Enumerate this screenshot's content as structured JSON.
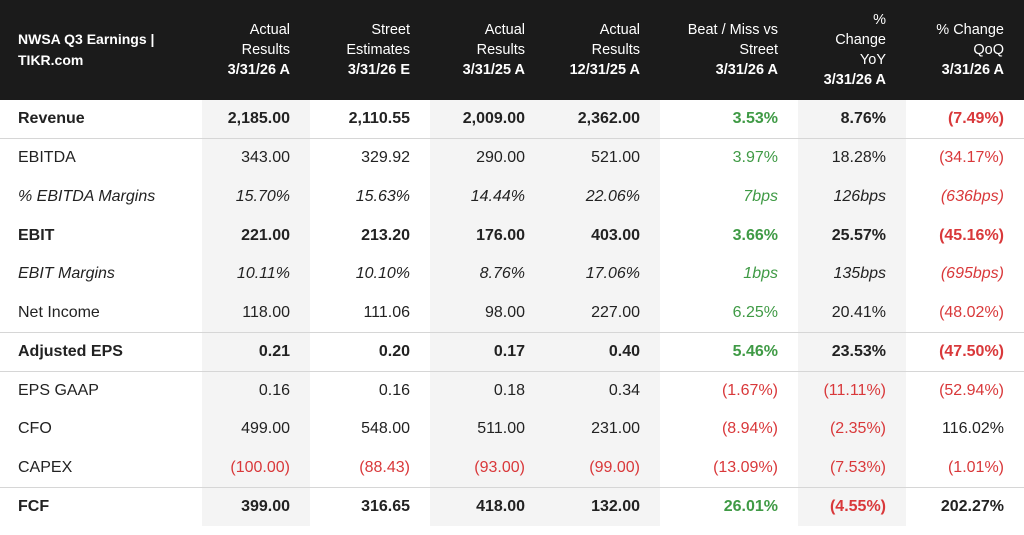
{
  "header": {
    "title": "NWSA Q3 Earnings | TIKR.com",
    "columns": [
      {
        "lines": [
          "Actual",
          "Results"
        ],
        "date": "3/31/26 A"
      },
      {
        "lines": [
          "Street",
          "Estimates"
        ],
        "date": "3/31/26 E"
      },
      {
        "lines": [
          "Actual",
          "Results"
        ],
        "date": "3/31/25 A"
      },
      {
        "lines": [
          "Actual",
          "Results"
        ],
        "date": "12/31/25 A"
      },
      {
        "lines": [
          "Beat / Miss vs",
          "Street"
        ],
        "date": "3/31/26 A"
      },
      {
        "lines": [
          "%",
          "Change",
          "YoY"
        ],
        "date": "3/31/26 A"
      },
      {
        "lines": [
          "% Change",
          "QoQ"
        ],
        "date": "3/31/26 A"
      }
    ]
  },
  "rows": [
    {
      "label": "Revenue",
      "values": [
        "2,185.00",
        "2,110.55",
        "2,009.00",
        "2,362.00",
        "3.53%",
        "8.76%",
        "(7.49%)"
      ]
    },
    {
      "label": "EBITDA",
      "values": [
        "343.00",
        "329.92",
        "290.00",
        "521.00",
        "3.97%",
        "18.28%",
        "(34.17%)"
      ]
    },
    {
      "label": "% EBITDA Margins",
      "values": [
        "15.70%",
        "15.63%",
        "14.44%",
        "22.06%",
        "7bps",
        "126bps",
        "(636bps)"
      ]
    },
    {
      "label": "EBIT",
      "values": [
        "221.00",
        "213.20",
        "176.00",
        "403.00",
        "3.66%",
        "25.57%",
        "(45.16%)"
      ]
    },
    {
      "label": "EBIT Margins",
      "values": [
        "10.11%",
        "10.10%",
        "8.76%",
        "17.06%",
        "1bps",
        "135bps",
        "(695bps)"
      ]
    },
    {
      "label": "Net Income",
      "values": [
        "118.00",
        "111.06",
        "98.00",
        "227.00",
        "6.25%",
        "20.41%",
        "(48.02%)"
      ]
    },
    {
      "label": "Adjusted EPS",
      "values": [
        "0.21",
        "0.20",
        "0.17",
        "0.40",
        "5.46%",
        "23.53%",
        "(47.50%)"
      ]
    },
    {
      "label": "EPS GAAP",
      "values": [
        "0.16",
        "0.16",
        "0.18",
        "0.34",
        "(1.67%)",
        "(11.11%)",
        "(52.94%)"
      ]
    },
    {
      "label": "CFO",
      "values": [
        "499.00",
        "548.00",
        "511.00",
        "231.00",
        "(8.94%)",
        "(2.35%)",
        "116.02%"
      ]
    },
    {
      "label": "CAPEX",
      "values": [
        "(100.00)",
        "(88.43)",
        "(93.00)",
        "(99.00)",
        "(13.09%)",
        "(7.53%)",
        "(1.01%)"
      ]
    },
    {
      "label": "FCF",
      "values": [
        "399.00",
        "316.65",
        "418.00",
        "132.00",
        "26.01%",
        "(4.55%)",
        "202.27%"
      ]
    }
  ],
  "colors": {
    "header_bg": "#1b1b1b",
    "positive": "#3f9a45",
    "negative": "#d9383a",
    "shade": "#f4f4f4"
  }
}
